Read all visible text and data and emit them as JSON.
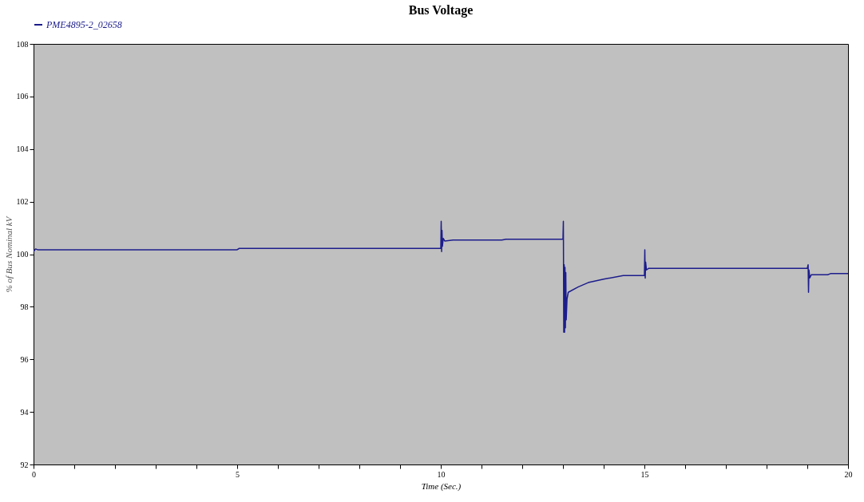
{
  "chart_data": {
    "type": "line",
    "title": "Bus Voltage",
    "xlabel": "Time (Sec.)",
    "ylabel": "% of Bus Nominal kV",
    "x": [
      0,
      0.05,
      0.1,
      0.2,
      5,
      5.05,
      10,
      10.01,
      10.02,
      10.03,
      10.04,
      10.06,
      10.1,
      10.3,
      11.5,
      11.6,
      13,
      13.01,
      13.02,
      13.03,
      13.04,
      13.05,
      13.06,
      13.07,
      13.08,
      13.1,
      13.13,
      13.37,
      13.62,
      14.0,
      14.48,
      15.0,
      15.01,
      15.02,
      15.03,
      15.05,
      15.1,
      19.0,
      19.02,
      19.03,
      19.04,
      19.06,
      19.1,
      19.5,
      19.57,
      20
    ],
    "series": [
      {
        "name": "PME4895-2_02658",
        "color": "#1c1c8c",
        "values": [
          100.1,
          100.2,
          100.17,
          100.17,
          100.17,
          100.22,
          100.22,
          101.25,
          100.1,
          100.9,
          100.3,
          100.6,
          100.5,
          100.54,
          100.54,
          100.57,
          100.57,
          101.25,
          97.03,
          99.6,
          97.03,
          99.5,
          97.2,
          99.3,
          97.5,
          98.3,
          98.55,
          98.75,
          98.92,
          99.05,
          99.19,
          99.19,
          100.17,
          99.09,
          99.7,
          99.4,
          99.46,
          99.46,
          99.6,
          98.55,
          99.4,
          99.1,
          99.22,
          99.22,
          99.26,
          99.26
        ]
      }
    ],
    "xlim": [
      0,
      20
    ],
    "ylim": [
      92,
      108
    ],
    "xticks": [
      0,
      {
        "value": 1,
        "label": null
      },
      {
        "value": 2,
        "label": null
      },
      {
        "value": 3,
        "label": null
      },
      {
        "value": 4,
        "label": null
      },
      5,
      {
        "value": 6,
        "label": null
      },
      {
        "value": 7,
        "label": null
      },
      {
        "value": 8,
        "label": null
      },
      {
        "value": 9,
        "label": null
      },
      10,
      {
        "value": 11,
        "label": null
      },
      {
        "value": 12,
        "label": null
      },
      {
        "value": 13,
        "label": null
      },
      {
        "value": 14,
        "label": null
      },
      15,
      {
        "value": 16,
        "label": null
      },
      {
        "value": 17,
        "label": null
      },
      {
        "value": 18,
        "label": null
      },
      {
        "value": 19,
        "label": null
      },
      20
    ],
    "yticks": [
      92,
      94,
      96,
      98,
      100,
      102,
      104,
      106,
      108
    ],
    "grid": false,
    "legend": "top left",
    "marker": "none",
    "line_style": "solid"
  }
}
